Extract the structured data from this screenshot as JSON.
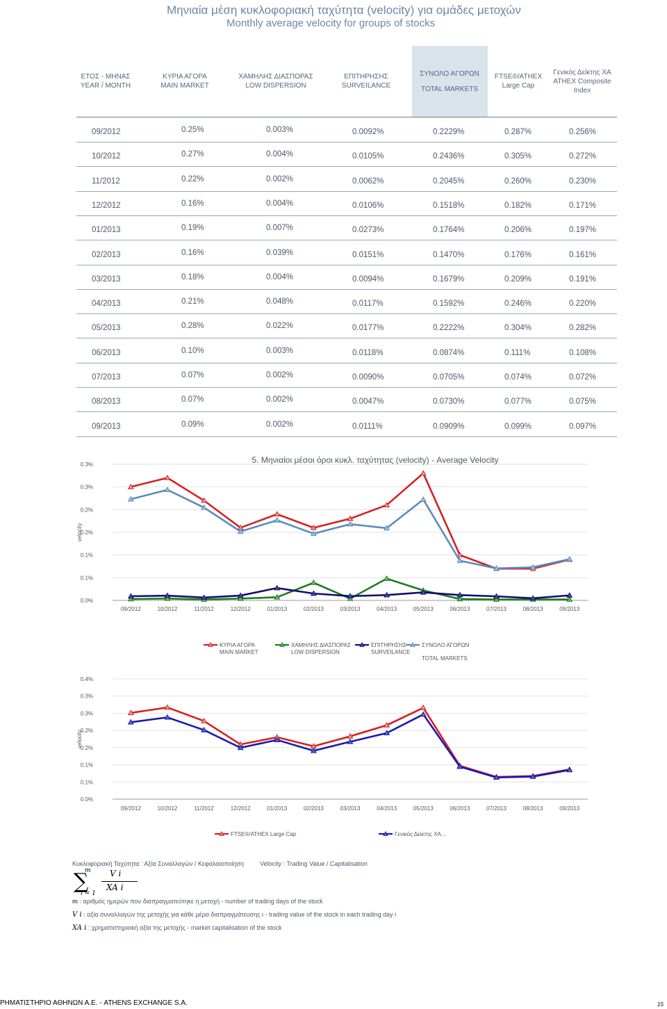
{
  "title": {
    "greek": "Μηνιαία μέση κυκλοφοριακή ταχύτητα (velocity) για ομάδες μετοχών",
    "english": "Monthly average velocity for groups of stocks"
  },
  "table": {
    "headers": [
      {
        "line1": "ΕΤΟΣ - ΜΗΝΑΣ",
        "line2": "YEAR / MONTH",
        "line3": ""
      },
      {
        "line1": "ΚΥΡΙΑ ΑΓΟΡΑ",
        "line2": "MAIN MARKET",
        "line3": ""
      },
      {
        "line1": "ΧΑΜΗΛΗΣ ΔΙΑΣΠΟΡΑΣ",
        "line2": "LOW DISPERSION",
        "line3": ""
      },
      {
        "line1": "ΕΠΙΤΗΡΗΣΗΣ",
        "line2": "SURVEILANCE",
        "line3": ""
      },
      {
        "line1": "ΣΥΝΟΛΟ ΑΓΟΡΩΝ",
        "line2": "TOTAL MARKETS",
        "line3": ""
      },
      {
        "line1": "FTSE®/ATHEX",
        "line2": "Large Cap",
        "line3": ""
      },
      {
        "line1": "Γενικός Δείκτης ΧΑ",
        "line2": "ATHEX Composite",
        "line3": "Index"
      }
    ],
    "rows": [
      [
        "09/2012",
        "0.25%",
        "0.003%",
        "0.0092%",
        "0.2229%",
        "0.287%",
        "0.256%"
      ],
      [
        "10/2012",
        "0.27%",
        "0.004%",
        "0.0105%",
        "0.2436%",
        "0.305%",
        "0.272%"
      ],
      [
        "11/2012",
        "0.22%",
        "0.002%",
        "0.0062%",
        "0.2045%",
        "0.260%",
        "0.230%"
      ],
      [
        "12/2012",
        "0.16%",
        "0.004%",
        "0.0106%",
        "0.1518%",
        "0.182%",
        "0.171%"
      ],
      [
        "01/2013",
        "0.19%",
        "0.007%",
        "0.0273%",
        "0.1764%",
        "0.206%",
        "0.197%"
      ],
      [
        "02/2013",
        "0.16%",
        "0.039%",
        "0.0151%",
        "0.1470%",
        "0.176%",
        "0.161%"
      ],
      [
        "03/2013",
        "0.18%",
        "0.004%",
        "0.0094%",
        "0.1679%",
        "0.209%",
        "0.191%"
      ],
      [
        "04/2013",
        "0.21%",
        "0.048%",
        "0.0117%",
        "0.1592%",
        "0.246%",
        "0.220%"
      ],
      [
        "05/2013",
        "0.28%",
        "0.022%",
        "0.0177%",
        "0.2222%",
        "0.304%",
        "0.282%"
      ],
      [
        "06/2013",
        "0.10%",
        "0.003%",
        "0.0118%",
        "0.0874%",
        "0.111%",
        "0.108%"
      ],
      [
        "07/2013",
        "0.07%",
        "0.002%",
        "0.0090%",
        "0.0705%",
        "0.074%",
        "0.072%"
      ],
      [
        "08/2013",
        "0.07%",
        "0.002%",
        "0.0047%",
        "0.0730%",
        "0.077%",
        "0.075%"
      ],
      [
        "09/2013",
        "0.09%",
        "0.002%",
        "0.0111%",
        "0.0909%",
        "0.099%",
        "0.097%"
      ]
    ]
  },
  "chart_data": [
    {
      "type": "line",
      "title": "5. Μηνιαίοι μέσοι όροι κυκλ. ταχύτητας (velocity) - Average Velocity",
      "ylabel": "velocity",
      "ylim": [
        0,
        0.3
      ],
      "tick_labels": [
        "0.0%",
        "0.1%",
        "0.1%",
        "0.2%",
        "0.2%",
        "0.3%",
        "0.3%"
      ],
      "categories": [
        "09/2012",
        "10/2012",
        "11/2012",
        "12/2012",
        "01/2013",
        "02/2013",
        "03/2013",
        "04/2013",
        "05/2013",
        "06/2013",
        "07/2013",
        "08/2013",
        "09/2013"
      ],
      "series": [
        {
          "name": "ΚΥΡΙΑ ΑΓΟΡΑ MAIN MARKET",
          "line1": "ΚΥΡΙΑ ΑΓΟΡΑ",
          "line2": "MAIN MARKET",
          "color": "#d62020",
          "marker": "#e8a0a0",
          "values": [
            0.25,
            0.27,
            0.22,
            0.16,
            0.19,
            0.16,
            0.18,
            0.21,
            0.28,
            0.1,
            0.07,
            0.07,
            0.09
          ]
        },
        {
          "name": "ΧΑΜΗΛΗΣ ΔΙΑΣΠΟΡΑΣ LOW DISPERSION",
          "line1": "ΧΑΜΗΛΗΣ ΔΙΑΣΠΟΡΑΣ",
          "line2": "LOW DISPERSION",
          "color": "#1f7a1f",
          "marker": "#6cbf6c",
          "values": [
            0.003,
            0.004,
            0.002,
            0.004,
            0.007,
            0.039,
            0.004,
            0.048,
            0.022,
            0.003,
            0.002,
            0.002,
            0.002
          ]
        },
        {
          "name": "ΕΠΙΤΗΡΗΣΗΣ SURVEILANCE",
          "line1": "ΕΠΙΤΗΡΗΣΗΣ",
          "line2": "SURVEILANCE",
          "color": "#10106a",
          "marker": "#4a4ab0",
          "values": [
            0.0092,
            0.0105,
            0.0062,
            0.0106,
            0.0273,
            0.0151,
            0.0094,
            0.0117,
            0.0177,
            0.0118,
            0.009,
            0.0047,
            0.0111
          ]
        },
        {
          "name": "ΣΥΝΟΛΟ ΑΓΟΡΩΝ TOTAL MARKETS",
          "line1": "ΣΥΝΟΛΟ ΑΓΟΡΩΝ",
          "line2": "TOTAL MARKETS",
          "color": "#5b8bbd",
          "marker": "#9dc0e0",
          "values": [
            0.2229,
            0.2436,
            0.2045,
            0.1518,
            0.1764,
            0.147,
            0.1679,
            0.1592,
            0.2222,
            0.0874,
            0.0705,
            0.073,
            0.0909
          ]
        }
      ]
    },
    {
      "type": "line",
      "title": "",
      "ylabel": "velocity",
      "ylim": [
        0,
        0.4
      ],
      "tick_labels": [
        "0.0%",
        "0.1%",
        "0.1%",
        "0.2%",
        "0.2%",
        "0.3%",
        "0.3%",
        "0.4%"
      ],
      "categories": [
        "09/2012",
        "10/2012",
        "11/2012",
        "12/2012",
        "01/2013",
        "02/2013",
        "03/2013",
        "04/2013",
        "05/2013",
        "06/2013",
        "07/2013",
        "08/2013",
        "09/2013"
      ],
      "series": [
        {
          "name": "FTSE®/ATHEX Large Cap",
          "color": "#d62020",
          "marker": "#e8a0a0",
          "values": [
            0.287,
            0.305,
            0.26,
            0.182,
            0.206,
            0.176,
            0.209,
            0.246,
            0.304,
            0.111,
            0.074,
            0.077,
            0.099
          ]
        },
        {
          "name": "Γενικός Δείκτης ΧΑ...",
          "color": "#1a1ab0",
          "marker": "#4a6bd0",
          "values": [
            0.256,
            0.272,
            0.23,
            0.171,
            0.197,
            0.161,
            0.191,
            0.22,
            0.282,
            0.108,
            0.072,
            0.075,
            0.097
          ]
        }
      ]
    }
  ],
  "notes": {
    "definition": "Κυκλοφοριακή Ταχύτητα : Αξία Συναλλαγών / Κεφαλαιοποίηση",
    "definition_en": "Velocity : Trading Value / Capitalisation",
    "formula_sum_top": "m",
    "formula_sum_bottom": "i = 1",
    "formula_num": "V i",
    "formula_den": "XA i",
    "m_symbol": "m",
    "m_text": " : αριθμός ημερών που διαπραγματεύτηκε η μετοχή - number of trading days of the stock",
    "v_symbol": "V i",
    "v_text": " : αξία συναλλαγών της μετοχής για κάθε μέρα διαπραγμάτευσης i - trading value of the stock in each trading day i",
    "xa_symbol": "XA i",
    "xa_text": " : χρηματιστηριακή αξία της μετοχής - market capitalisation of the stock"
  },
  "footer": {
    "left": "ΡΗΜΑΤΙΣΤΗΡΙΟ ΑΘΗΝΩΝ Α.Ε. - ATHENS EXCHANGE S.A.",
    "page": "15"
  }
}
